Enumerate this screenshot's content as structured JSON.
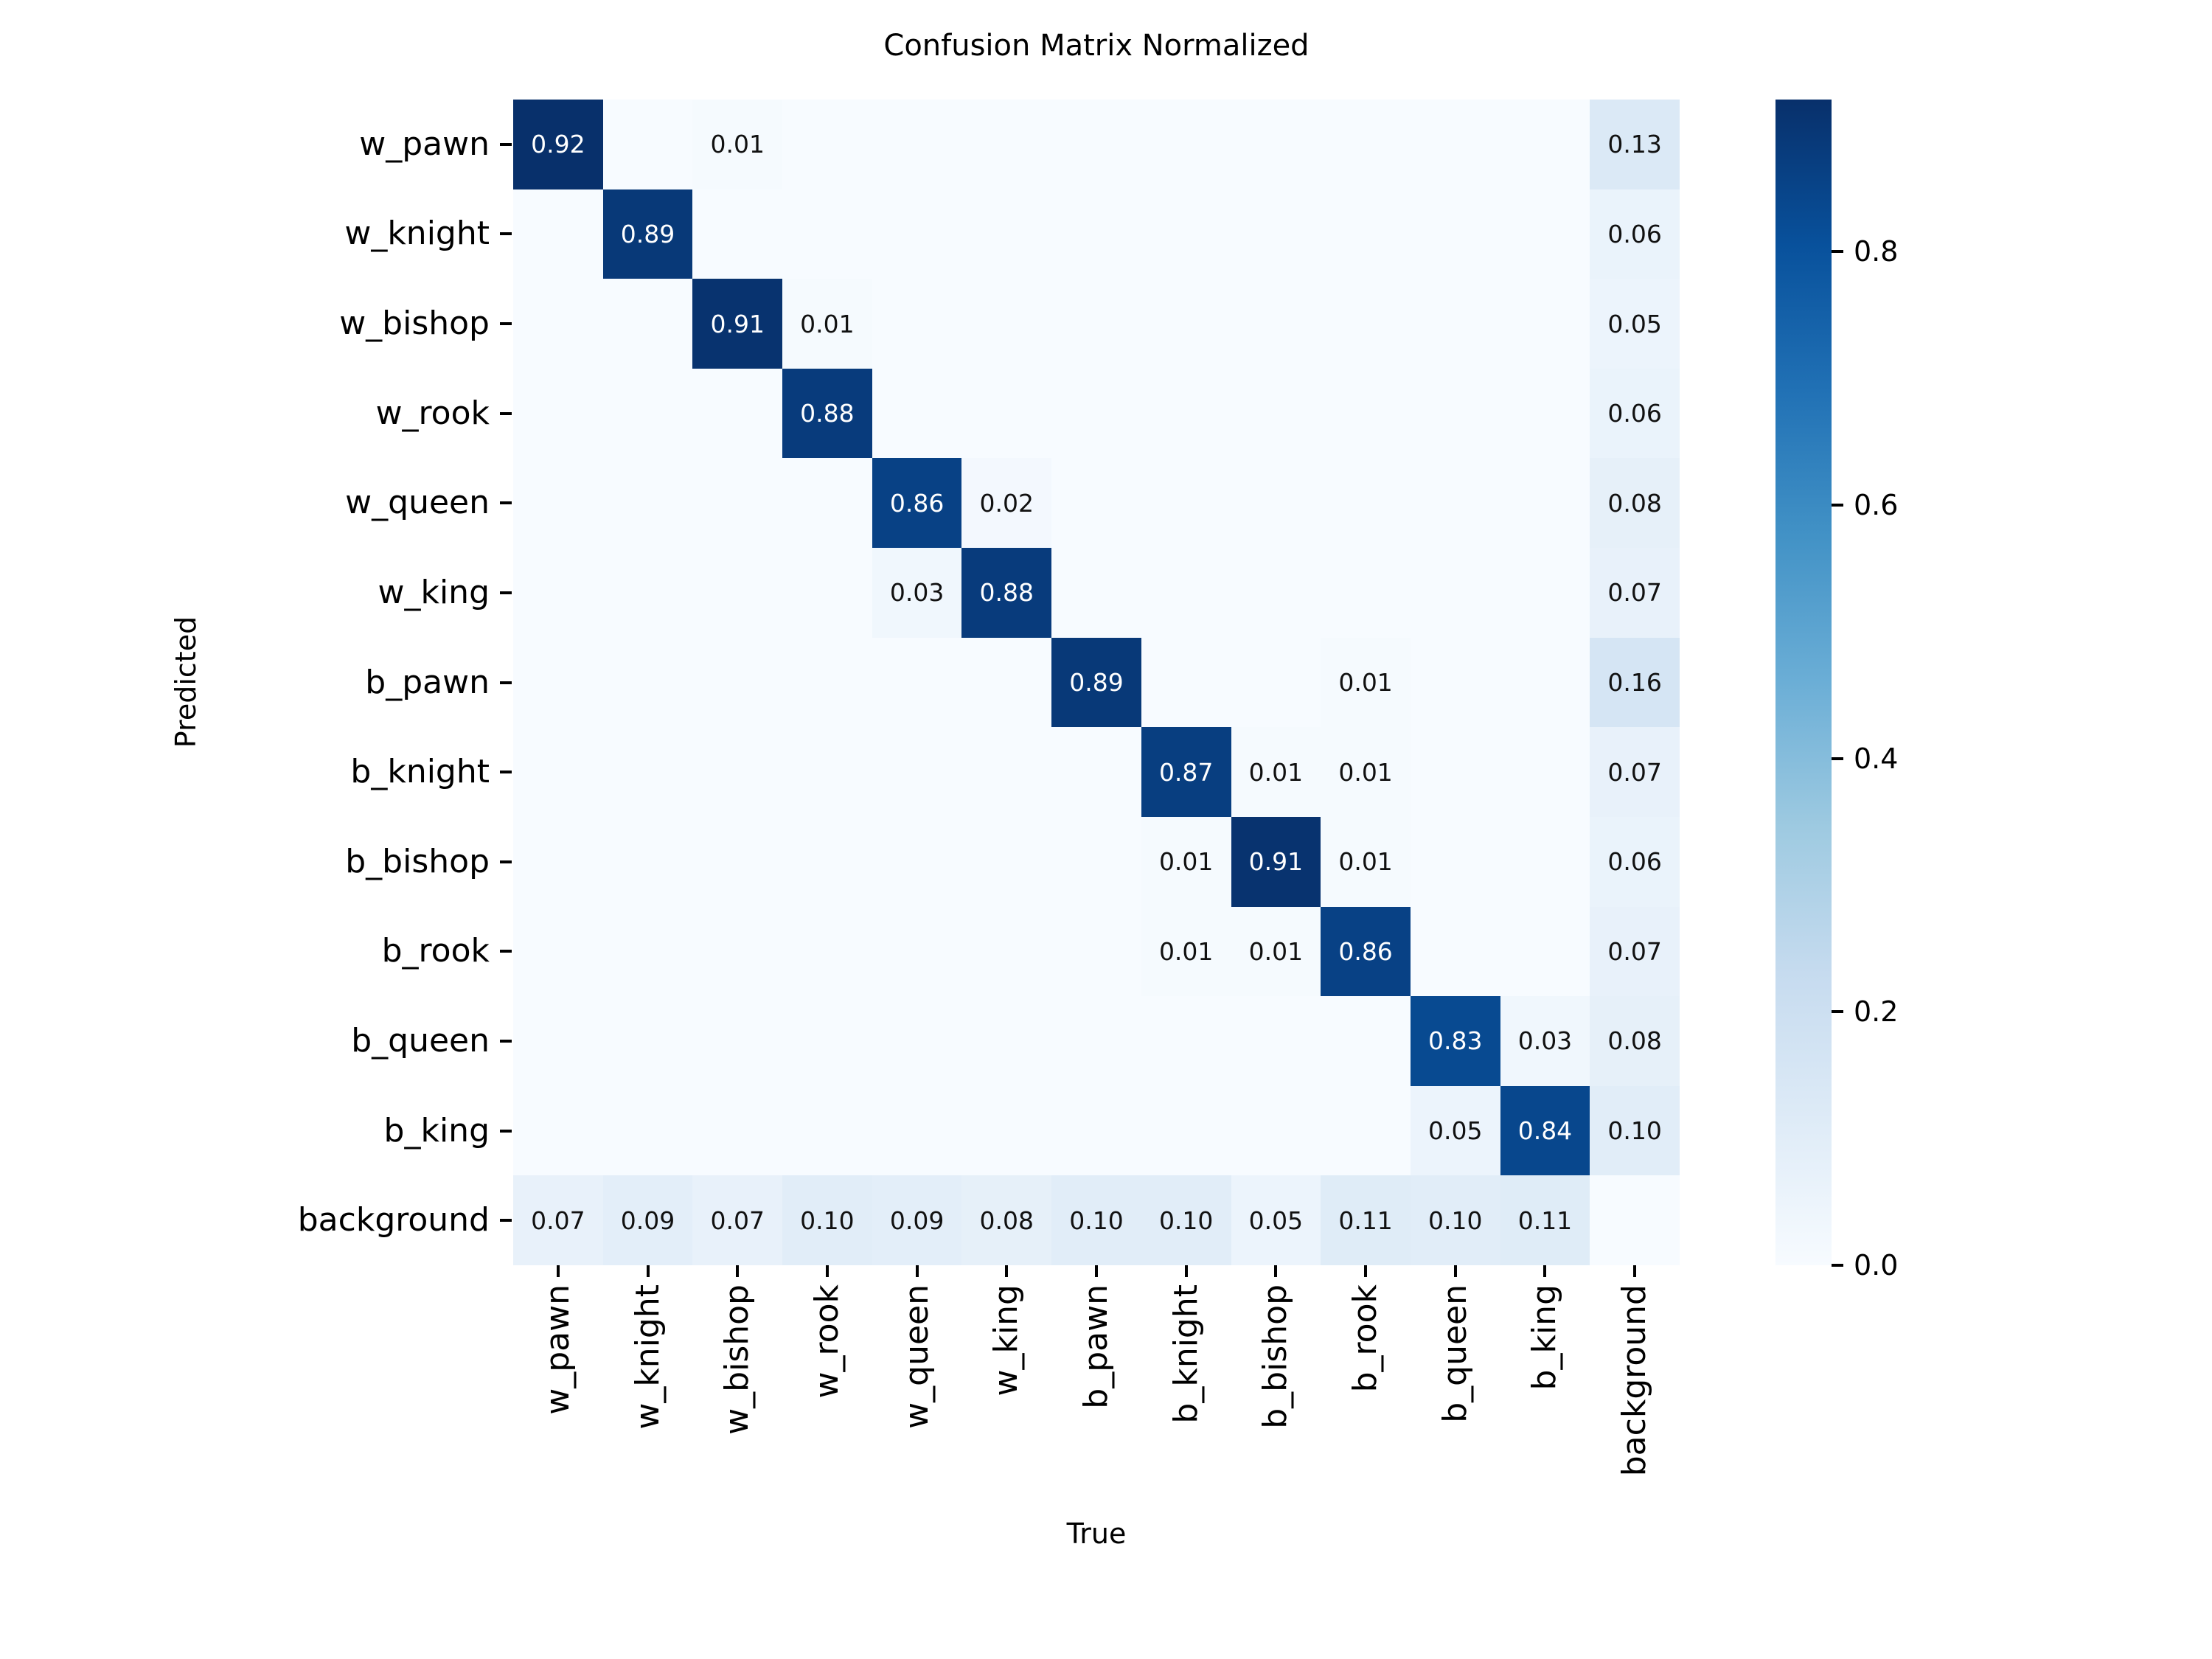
{
  "figure": {
    "background": "#ffffff"
  },
  "chart_data": {
    "type": "heatmap",
    "title": "Confusion Matrix Normalized",
    "xlabel": "True",
    "ylabel": "Predicted",
    "x_tick_labels": [
      "w_pawn",
      "w_knight",
      "w_bishop",
      "w_rook",
      "w_queen",
      "w_king",
      "b_pawn",
      "b_knight",
      "b_bishop",
      "b_rook",
      "b_queen",
      "b_king",
      "background"
    ],
    "y_tick_labels": [
      "w_pawn",
      "w_knight",
      "w_bishop",
      "w_rook",
      "w_queen",
      "w_king",
      "b_pawn",
      "b_knight",
      "b_bishop",
      "b_rook",
      "b_queen",
      "b_king",
      "background"
    ],
    "matrix": [
      [
        0.92,
        0,
        0.01,
        0,
        0,
        0,
        0,
        0,
        0,
        0,
        0,
        0,
        0.13
      ],
      [
        0,
        0.89,
        0,
        0,
        0,
        0,
        0,
        0,
        0,
        0,
        0,
        0,
        0.06
      ],
      [
        0,
        0,
        0.91,
        0.01,
        0,
        0,
        0,
        0,
        0,
        0,
        0,
        0,
        0.05
      ],
      [
        0,
        0,
        0,
        0.88,
        0,
        0,
        0,
        0,
        0,
        0,
        0,
        0,
        0.06
      ],
      [
        0,
        0,
        0,
        0,
        0.86,
        0.02,
        0,
        0,
        0,
        0,
        0,
        0,
        0.08
      ],
      [
        0,
        0,
        0,
        0,
        0.03,
        0.88,
        0,
        0,
        0,
        0,
        0,
        0,
        0.07
      ],
      [
        0,
        0,
        0,
        0,
        0,
        0,
        0.89,
        0,
        0,
        0.01,
        0,
        0,
        0.16
      ],
      [
        0,
        0,
        0,
        0,
        0,
        0,
        0,
        0.87,
        0.01,
        0.01,
        0,
        0,
        0.07
      ],
      [
        0,
        0,
        0,
        0,
        0,
        0,
        0,
        0.01,
        0.91,
        0.01,
        0,
        0,
        0.06
      ],
      [
        0,
        0,
        0,
        0,
        0,
        0,
        0,
        0.01,
        0.01,
        0.86,
        0,
        0,
        0.07
      ],
      [
        0,
        0,
        0,
        0,
        0,
        0,
        0,
        0,
        0,
        0,
        0.83,
        0.03,
        0.08
      ],
      [
        0,
        0,
        0,
        0,
        0,
        0,
        0,
        0,
        0,
        0,
        0.05,
        0.84,
        0.1
      ],
      [
        0.07,
        0.09,
        0.07,
        0.1,
        0.09,
        0.08,
        0.1,
        0.1,
        0.05,
        0.11,
        0.1,
        0.11,
        0
      ]
    ],
    "vmin": 0.0,
    "vmax": 0.92,
    "colormap": "Blues",
    "colorbar": {
      "position": "right",
      "tick_values": [
        0.0,
        0.2,
        0.4,
        0.6,
        0.8
      ],
      "tick_labels": [
        "0.0",
        "0.2",
        "0.4",
        "0.6",
        "0.8"
      ]
    },
    "annotations": "cells with value > 0 are annotated to 2 decimals; zero cells are blank",
    "annot_text_colors": {
      "on_dark": "#ffffff",
      "on_light": "#111111"
    },
    "grid": false,
    "legend": null
  }
}
